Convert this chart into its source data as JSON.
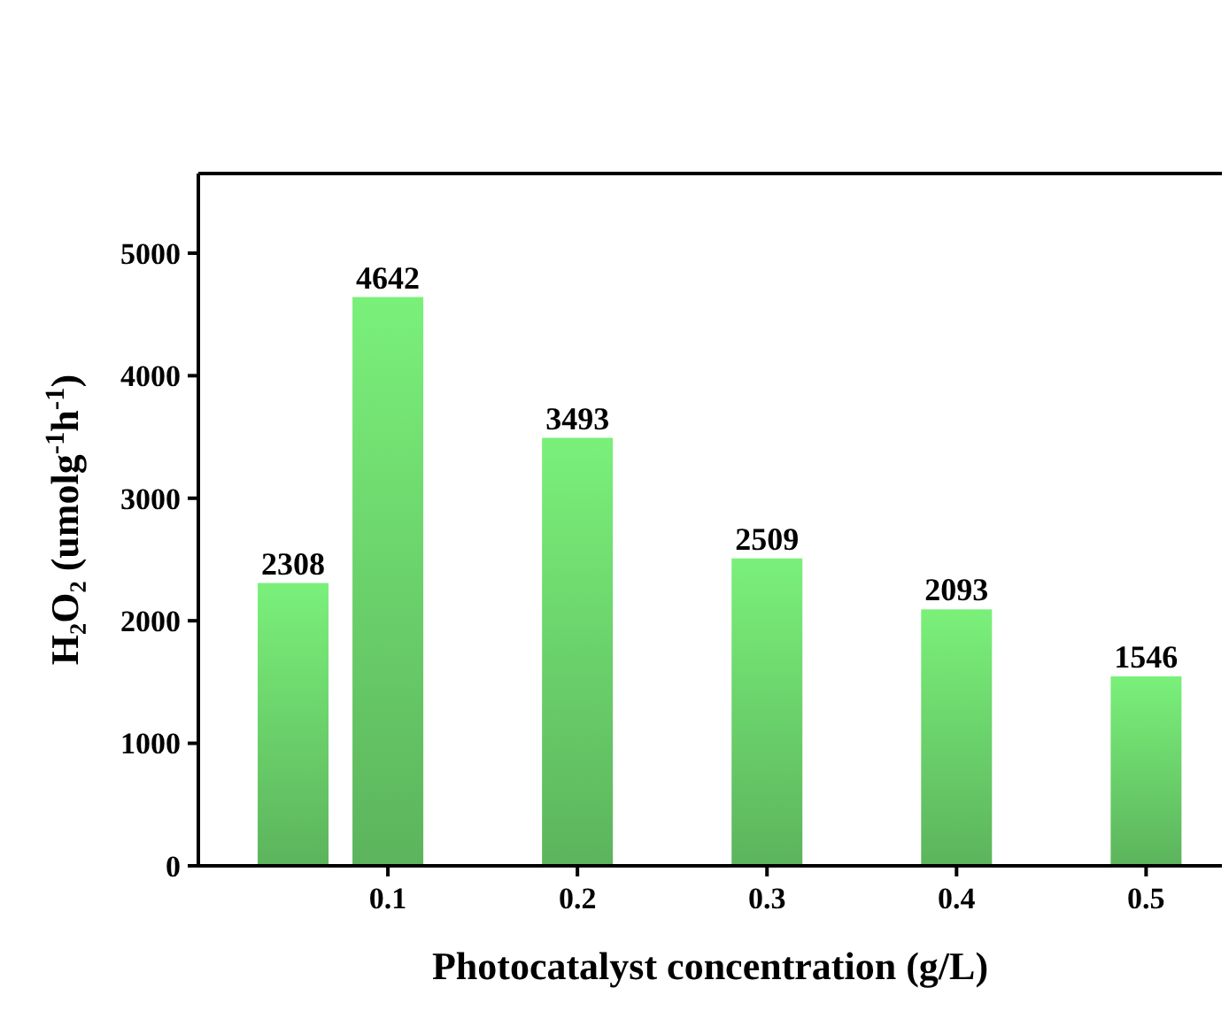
{
  "chart_data": {
    "type": "bar",
    "xlabel": "Photocatalyst concentration (g/L)",
    "ylabel": "H₂O₂ (umolg$^{-1}$h$^{-1}$)",
    "x": [
      0.05,
      0.1,
      0.2,
      0.3,
      0.4,
      0.5
    ],
    "values": [
      2308,
      4642,
      3493,
      2509,
      2093,
      1546
    ],
    "color": "#7af07a",
    "xlim": [
      0,
      0.54
    ],
    "xticks": [
      0.1,
      0.2,
      0.3,
      0.4,
      0.5
    ],
    "ylim": [
      0,
      5650
    ],
    "yticks": [
      0,
      1000,
      2000,
      3000,
      4000,
      5000
    ],
    "data_labels": true
  }
}
